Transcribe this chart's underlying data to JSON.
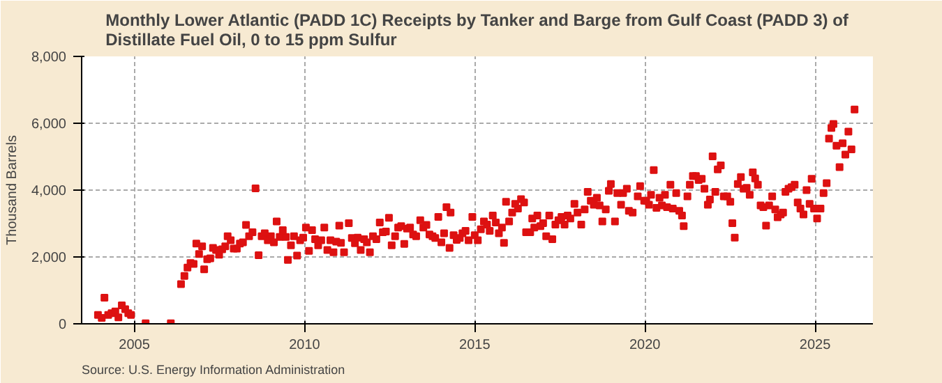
{
  "chart_data": {
    "type": "scatter",
    "title": "Monthly Lower Atlantic (PADD 1C) Receipts by Tanker and Barge from Gulf Coast (PADD 3) of Distillate Fuel Oil, 0 to 15 ppm Sulfur",
    "ylabel": "Thousand Barrels",
    "annotations": [
      "Source: U.S. Energy Information Administration"
    ],
    "marker": "square",
    "grid": true,
    "xlim": [
      2003.45,
      2026.7
    ],
    "xticks": [
      2005,
      2010,
      2015,
      2020,
      2025
    ],
    "ylim": [
      0,
      8000
    ],
    "yticks": [
      {
        "value": 0,
        "label": "0"
      },
      {
        "value": 2000,
        "label": "2,000"
      },
      {
        "value": 4000,
        "label": "4,000"
      },
      {
        "value": 6000,
        "label": "6,000"
      },
      {
        "value": 8000,
        "label": "8,000"
      }
    ],
    "series": [
      {
        "color": "#dd1111",
        "x": [
          2003.93,
          2004.04,
          2004.12,
          2004.23,
          2004.33,
          2004.44,
          2004.53,
          2004.63,
          2004.73,
          2004.82,
          2004.9,
          2005.33,
          2006.07,
          2006.37,
          2006.47,
          2006.56,
          2006.65,
          2006.74,
          2006.82,
          2006.9,
          2006.99,
          2007.05,
          2007.14,
          2007.23,
          2007.31,
          2007.4,
          2007.49,
          2007.58,
          2007.67,
          2007.74,
          2007.83,
          2007.92,
          2008.01,
          2008.1,
          2008.19,
          2008.28,
          2008.37,
          2008.47,
          2008.56,
          2008.65,
          2008.74,
          2008.83,
          2008.92,
          2009.01,
          2009.1,
          2009.18,
          2009.27,
          2009.36,
          2009.45,
          2009.51,
          2009.6,
          2009.69,
          2009.78,
          2009.87,
          2009.96,
          2010.04,
          2010.13,
          2010.22,
          2010.31,
          2010.4,
          2010.49,
          2010.58,
          2010.67,
          2010.76,
          2010.85,
          2010.93,
          2011.02,
          2011.07,
          2011.16,
          2011.3,
          2011.39,
          2011.48,
          2011.56,
          2011.65,
          2011.75,
          2011.83,
          2011.92,
          2012.01,
          2012.11,
          2012.21,
          2012.3,
          2012.39,
          2012.48,
          2012.56,
          2012.66,
          2012.75,
          2012.84,
          2012.93,
          2013.01,
          2013.1,
          2013.19,
          2013.28,
          2013.4,
          2013.49,
          2013.58,
          2013.67,
          2013.76,
          2013.84,
          2013.93,
          2014.02,
          2014.1,
          2014.17,
          2014.26,
          2014.29,
          2014.38,
          2014.47,
          2014.56,
          2014.64,
          2014.73,
          2014.82,
          2014.93,
          2015.0,
          2015.09,
          2015.18,
          2015.27,
          2015.36,
          2015.44,
          2015.53,
          2015.62,
          2015.71,
          2015.8,
          2015.86,
          2015.92,
          2016.01,
          2016.1,
          2016.19,
          2016.27,
          2016.36,
          2016.45,
          2016.51,
          2016.63,
          2016.69,
          2016.75,
          2016.84,
          2016.93,
          2017.01,
          2017.1,
          2017.19,
          2017.28,
          2017.37,
          2017.46,
          2017.55,
          2017.64,
          2017.73,
          2017.81,
          2017.93,
          2018.02,
          2018.13,
          2018.23,
          2018.32,
          2018.41,
          2018.5,
          2018.59,
          2018.67,
          2018.75,
          2018.85,
          2018.94,
          2019.0,
          2019.12,
          2019.19,
          2019.3,
          2019.36,
          2019.47,
          2019.53,
          2019.64,
          2019.79,
          2019.86,
          2019.98,
          2020.04,
          2020.12,
          2020.18,
          2020.26,
          2020.34,
          2020.43,
          2020.5,
          2020.59,
          2020.65,
          2020.75,
          2020.82,
          2020.92,
          2021.01,
          2021.09,
          2021.14,
          2021.25,
          2021.32,
          2021.41,
          2021.5,
          2021.58,
          2021.67,
          2021.75,
          2021.85,
          2021.91,
          2021.99,
          2022.07,
          2022.14,
          2022.23,
          2022.32,
          2022.42,
          2022.51,
          2022.57,
          2022.64,
          2022.73,
          2022.82,
          2022.9,
          2022.99,
          2023.08,
          2023.17,
          2023.24,
          2023.32,
          2023.4,
          2023.48,
          2023.56,
          2023.65,
          2023.74,
          2023.83,
          2023.9,
          2023.99,
          2024.06,
          2024.13,
          2024.22,
          2024.31,
          2024.4,
          2024.49,
          2024.57,
          2024.66,
          2024.75,
          2024.84,
          2024.9,
          2024.97,
          2025.06,
          2025.16,
          2025.25,
          2025.34,
          2025.41,
          2025.48,
          2025.54,
          2025.63,
          2025.72,
          2025.81,
          2025.89,
          2025.98,
          2026.07,
          2026.16
        ],
        "values": [
          265,
          177,
          780,
          265,
          320,
          370,
          195,
          550,
          440,
          320,
          265,
          18,
          18,
          1190,
          1430,
          1680,
          1820,
          1790,
          2400,
          2090,
          2320,
          1630,
          1930,
          1960,
          2270,
          2210,
          2070,
          2230,
          2320,
          2620,
          2500,
          2250,
          2250,
          2400,
          2440,
          2960,
          2620,
          2740,
          4050,
          2050,
          2620,
          2710,
          2500,
          2620,
          2440,
          3060,
          2600,
          2800,
          2600,
          1910,
          2350,
          2620,
          2040,
          2500,
          2580,
          2880,
          2180,
          2800,
          2530,
          2350,
          2500,
          2880,
          2210,
          2500,
          2140,
          2460,
          2940,
          2420,
          2140,
          3010,
          2570,
          2410,
          2580,
          2210,
          2530,
          2440,
          2140,
          2620,
          2530,
          3030,
          2740,
          2760,
          3170,
          2350,
          2620,
          2880,
          2920,
          2390,
          2850,
          2880,
          2670,
          2620,
          3100,
          2880,
          2960,
          2670,
          2620,
          2570,
          3200,
          2440,
          2710,
          3490,
          2270,
          3330,
          2650,
          2510,
          2570,
          2710,
          2780,
          2500,
          3200,
          2650,
          2500,
          2830,
          3060,
          2970,
          2780,
          3240,
          3030,
          2710,
          2880,
          2420,
          3650,
          3060,
          3330,
          3590,
          3450,
          3730,
          3630,
          2740,
          2740,
          3150,
          2880,
          3240,
          2920,
          3010,
          2620,
          3240,
          2530,
          2970,
          3100,
          3200,
          2970,
          3240,
          3150,
          3590,
          3330,
          2970,
          3420,
          3950,
          3680,
          3560,
          3770,
          3540,
          3060,
          3420,
          3980,
          4180,
          3060,
          3910,
          3560,
          3910,
          4040,
          3380,
          3330,
          3810,
          4120,
          3680,
          3680,
          3560,
          3860,
          4600,
          3470,
          3770,
          3540,
          3860,
          3490,
          4160,
          3450,
          3910,
          3380,
          3240,
          2920,
          3810,
          4160,
          4420,
          4420,
          4300,
          4340,
          4040,
          3560,
          3720,
          5010,
          3950,
          4620,
          4740,
          3810,
          3810,
          3650,
          3010,
          2580,
          4180,
          4390,
          4040,
          4070,
          3860,
          4530,
          4350,
          4160,
          3540,
          3490,
          2940,
          3540,
          3810,
          3420,
          3190,
          3270,
          3330,
          3950,
          4040,
          4090,
          4160,
          3630,
          3450,
          3270,
          4000,
          3590,
          4340,
          3450,
          3150,
          3450,
          3910,
          4210,
          5540,
          5860,
          5980,
          5330,
          4690,
          5400,
          5060,
          5750,
          5220,
          6410
        ]
      }
    ]
  }
}
